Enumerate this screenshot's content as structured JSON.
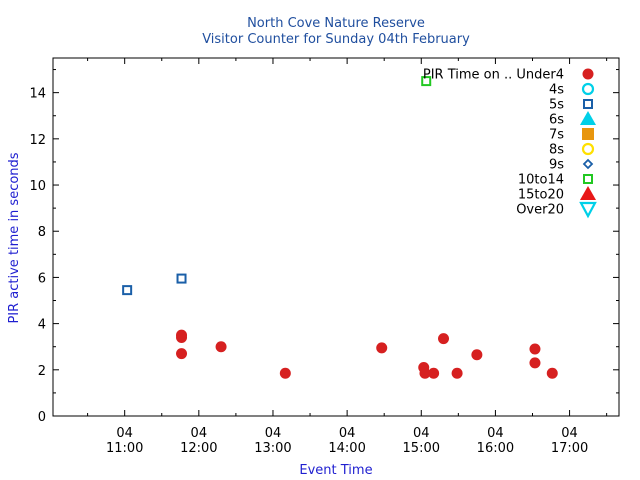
{
  "chart_data": {
    "type": "scatter",
    "title": "North Cove Nature Reserve",
    "subtitle": "Visitor Counter for Sunday 04th February",
    "xlabel": "Event Time",
    "ylabel": "PIR active time in seconds",
    "x_ticks": [
      {
        "time": "11:00",
        "day": "04"
      },
      {
        "time": "12:00",
        "day": "04"
      },
      {
        "time": "13:00",
        "day": "04"
      },
      {
        "time": "14:00",
        "day": "04"
      },
      {
        "time": "15:00",
        "day": "04"
      },
      {
        "time": "16:00",
        "day": "04"
      },
      {
        "time": "17:00",
        "day": "04"
      }
    ],
    "xlim": [
      "10:02",
      "17:40"
    ],
    "ylim": [
      0,
      15.5
    ],
    "y_ticks": [
      0,
      2,
      4,
      6,
      8,
      10,
      12,
      14
    ],
    "legend_title": "PIR Time on ..",
    "legend_position": "top-right",
    "grid": false,
    "series": [
      {
        "name": "Under4",
        "marker": "filled-circle",
        "color": "#d62020",
        "points": [
          {
            "x": "11:46",
            "y": 3.5
          },
          {
            "x": "11:46",
            "y": 3.4
          },
          {
            "x": "11:46",
            "y": 2.7
          },
          {
            "x": "12:18",
            "y": 3.0
          },
          {
            "x": "13:10",
            "y": 1.85
          },
          {
            "x": "14:28",
            "y": 2.95
          },
          {
            "x": "15:02",
            "y": 2.1
          },
          {
            "x": "15:03",
            "y": 1.85
          },
          {
            "x": "15:10",
            "y": 1.85
          },
          {
            "x": "15:18",
            "y": 3.35
          },
          {
            "x": "15:29",
            "y": 1.85
          },
          {
            "x": "15:45",
            "y": 2.65
          },
          {
            "x": "16:32",
            "y": 2.9
          },
          {
            "x": "16:32",
            "y": 2.3
          },
          {
            "x": "16:46",
            "y": 1.85
          }
        ]
      },
      {
        "name": "4s",
        "marker": "open-circle",
        "color": "#00d0e8",
        "points": []
      },
      {
        "name": "5s",
        "marker": "open-square",
        "color": "#1a5fa8",
        "points": [
          {
            "x": "11:02",
            "y": 5.45
          },
          {
            "x": "11:46",
            "y": 5.95
          }
        ]
      },
      {
        "name": "6s",
        "marker": "filled-triangle",
        "color": "#00d0e8",
        "points": []
      },
      {
        "name": "7s",
        "marker": "filled-square",
        "color": "#e8960e",
        "points": []
      },
      {
        "name": "8s",
        "marker": "open-circle",
        "color": "#ffe000",
        "points": []
      },
      {
        "name": "9s",
        "marker": "open-diamond",
        "color": "#1a5fa8",
        "points": []
      },
      {
        "name": "10to14",
        "marker": "open-square",
        "color": "#22c822",
        "points": [
          {
            "x": "15:04",
            "y": 14.5
          }
        ]
      },
      {
        "name": "15to20",
        "marker": "filled-triangle",
        "color": "#e81818",
        "points": []
      },
      {
        "name": "Over20",
        "marker": "open-triangle-down",
        "color": "#00d0e8",
        "points": []
      }
    ]
  }
}
